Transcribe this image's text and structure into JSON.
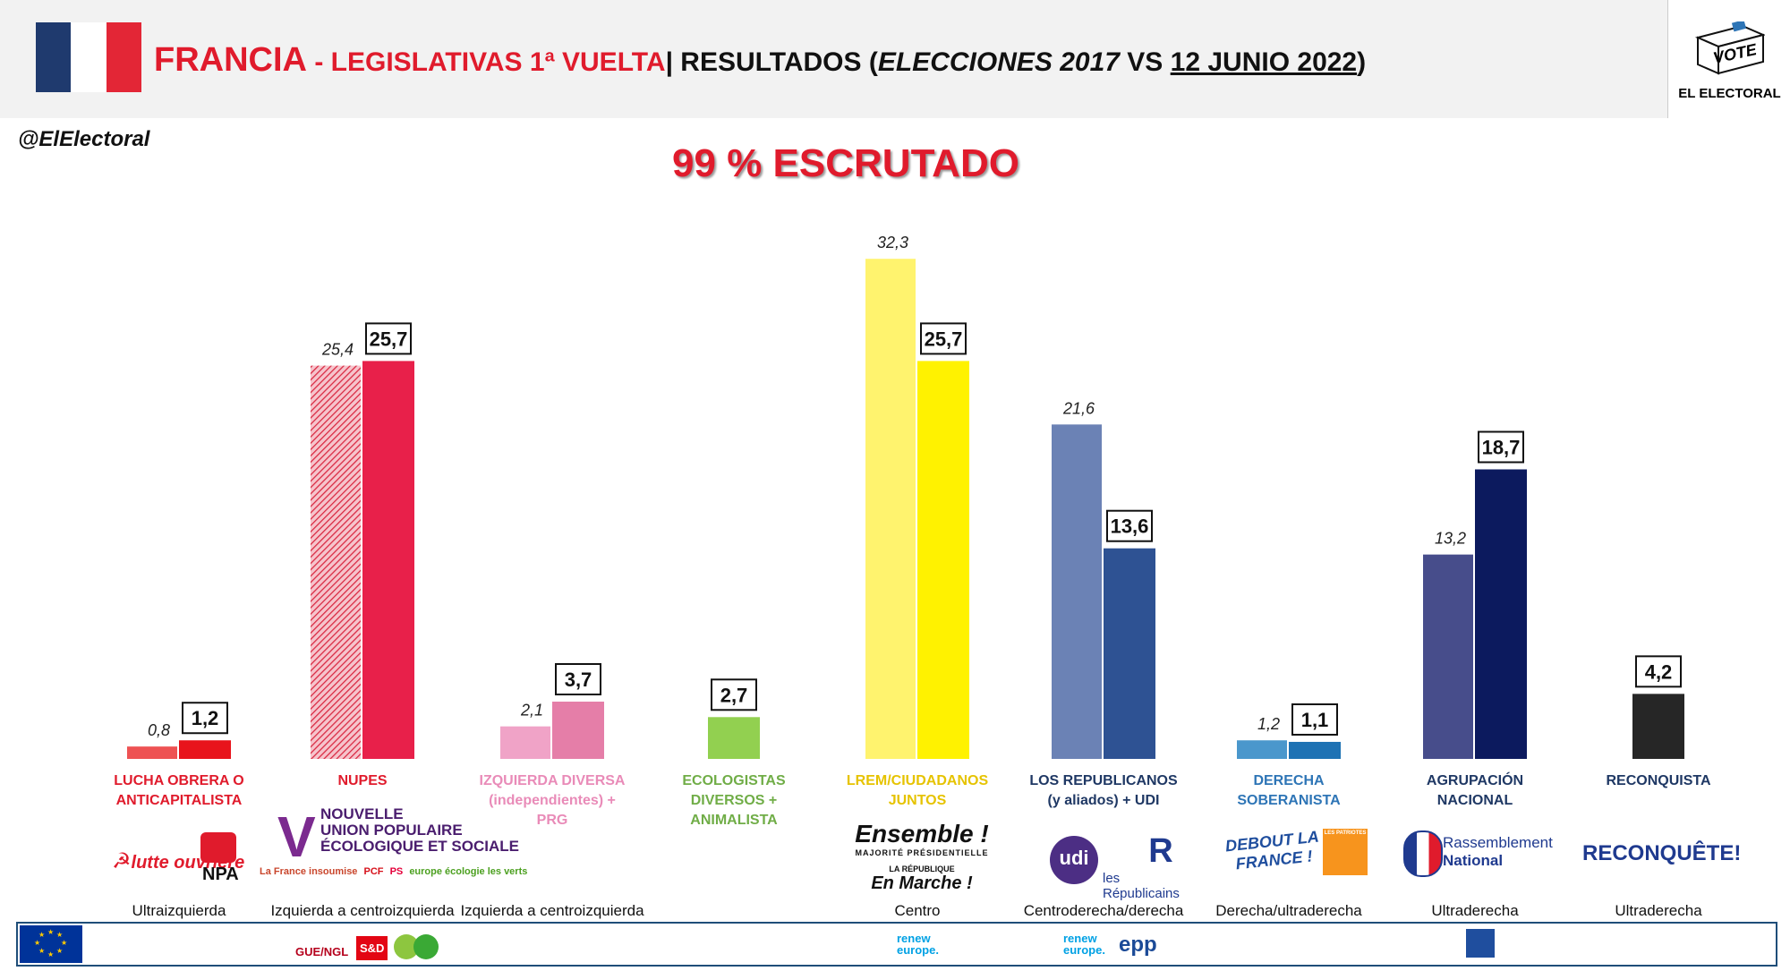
{
  "header": {
    "country": "FRANCIA",
    "dash": " - ",
    "election": "LEGISLATIVAS 1ª VUELTA",
    "sep": "| ",
    "results": "RESULTADOS (",
    "prev": "ELECCIONES 2017",
    "vs": " VS ",
    "date": "12 JUNIO 2022",
    "close": ")",
    "flag_colors": [
      "#1f3a6e",
      "#ffffff",
      "#e32636"
    ]
  },
  "brand": {
    "vote": "VOTE",
    "name": "EL ELECTORAL"
  },
  "handle": "@ElElectoral",
  "scrutiny": "99 % ESCRUTADO",
  "chart_data": {
    "type": "bar",
    "ylim": [
      0,
      40
    ],
    "series": [
      {
        "name": "2017",
        "values": [
          0.8,
          25.4,
          2.1,
          null,
          32.3,
          21.6,
          1.2,
          13.2,
          null
        ]
      },
      {
        "name": "2022",
        "values": [
          1.2,
          25.7,
          3.7,
          2.7,
          25.7,
          13.6,
          1.1,
          18.7,
          4.2
        ]
      }
    ],
    "labels_2017": [
      "0,8",
      "25,4",
      "2,1",
      "",
      "32,3",
      "21,6",
      "1,2",
      "13,2",
      ""
    ],
    "labels_2022": [
      "1,2",
      "25,7",
      "3,7",
      "2,7",
      "25,7",
      "13,6",
      "1,1",
      "18,7",
      "4,2"
    ],
    "colors_2017": [
      "#ee5253",
      "hatch",
      "#f0a3c7",
      "",
      "#fff36e",
      "#6b82b5",
      "#4a97cc",
      "#474d8b",
      ""
    ],
    "colors_2022": [
      "#e8141c",
      "#e8204a",
      "#e57ea8",
      "#92d050",
      "#fff200",
      "#2e5293",
      "#1e72b4",
      "#0c1a5e",
      "#262626"
    ],
    "categories": [
      {
        "lines": [
          "LUCHA OBRERA O",
          "ANTICAPITALISTA"
        ],
        "color": "#e01b2c",
        "ideology": "Ultraizquierda"
      },
      {
        "lines": [
          "NUPES"
        ],
        "color": "#e01b2c",
        "ideology": "Izquierda a centroizquierda"
      },
      {
        "lines": [
          "IZQUIERDA DIVERSA",
          "(independientes) +",
          "PRG"
        ],
        "color": "#e98bb8",
        "ideology": "Izquierda a centroizquierda"
      },
      {
        "lines": [
          "ECOLOGISTAS",
          "DIVERSOS +",
          "ANIMALISTA"
        ],
        "color": "#70ad47",
        "ideology": ""
      },
      {
        "lines": [
          "LREM/CIUDADANOS",
          "JUNTOS"
        ],
        "color": "#e6c300",
        "ideology": "Centro"
      },
      {
        "lines": [
          "LOS REPUBLICANOS",
          "(y aliados) + UDI"
        ],
        "color": "#1f3864",
        "ideology": "Centroderecha/derecha"
      },
      {
        "lines": [
          "DERECHA",
          "SOBERANISTA"
        ],
        "color": "#2e75b6",
        "ideology": "Derecha/ultraderecha"
      },
      {
        "lines": [
          "AGRUPACIÓN",
          "NACIONAL"
        ],
        "color": "#1f3864",
        "ideology": "Ultraderecha"
      },
      {
        "lines": [
          "RECONQUISTA"
        ],
        "color": "#1f3864",
        "ideology": "Ultraderecha"
      }
    ]
  },
  "logos": {
    "lo": "lutte ouvrière",
    "npa": "NPA",
    "nupes1": "NOUVELLE",
    "nupes2": "UNION POPULAIRE",
    "nupes3": "ÉCOLOGIQUE ET SOCIALE",
    "lfi": "La France insoumise",
    "pcf": "PCF",
    "ps": "PS",
    "eelv": "europe écologie les verts",
    "ens1": "Ensemble !",
    "ens2": "MAJORITÉ PRÉSIDENTIELLE",
    "ens3": "LA RÉPUBLIQUE",
    "ens4": "En Marche !",
    "udi": "udi",
    "lr": "les Républicains",
    "dlf": "DEBOUT LA FRANCE !",
    "patriotes": "LES PATRIOTES",
    "rn1": "Rassemblement",
    "rn2": "National",
    "rec": "RECONQUÊTE!"
  },
  "eu_groups": {
    "left": "GUE/NGL",
    "sd": "S&D",
    "renew1": "renew europe.",
    "renew2": "renew europe.",
    "epp": "epp"
  }
}
